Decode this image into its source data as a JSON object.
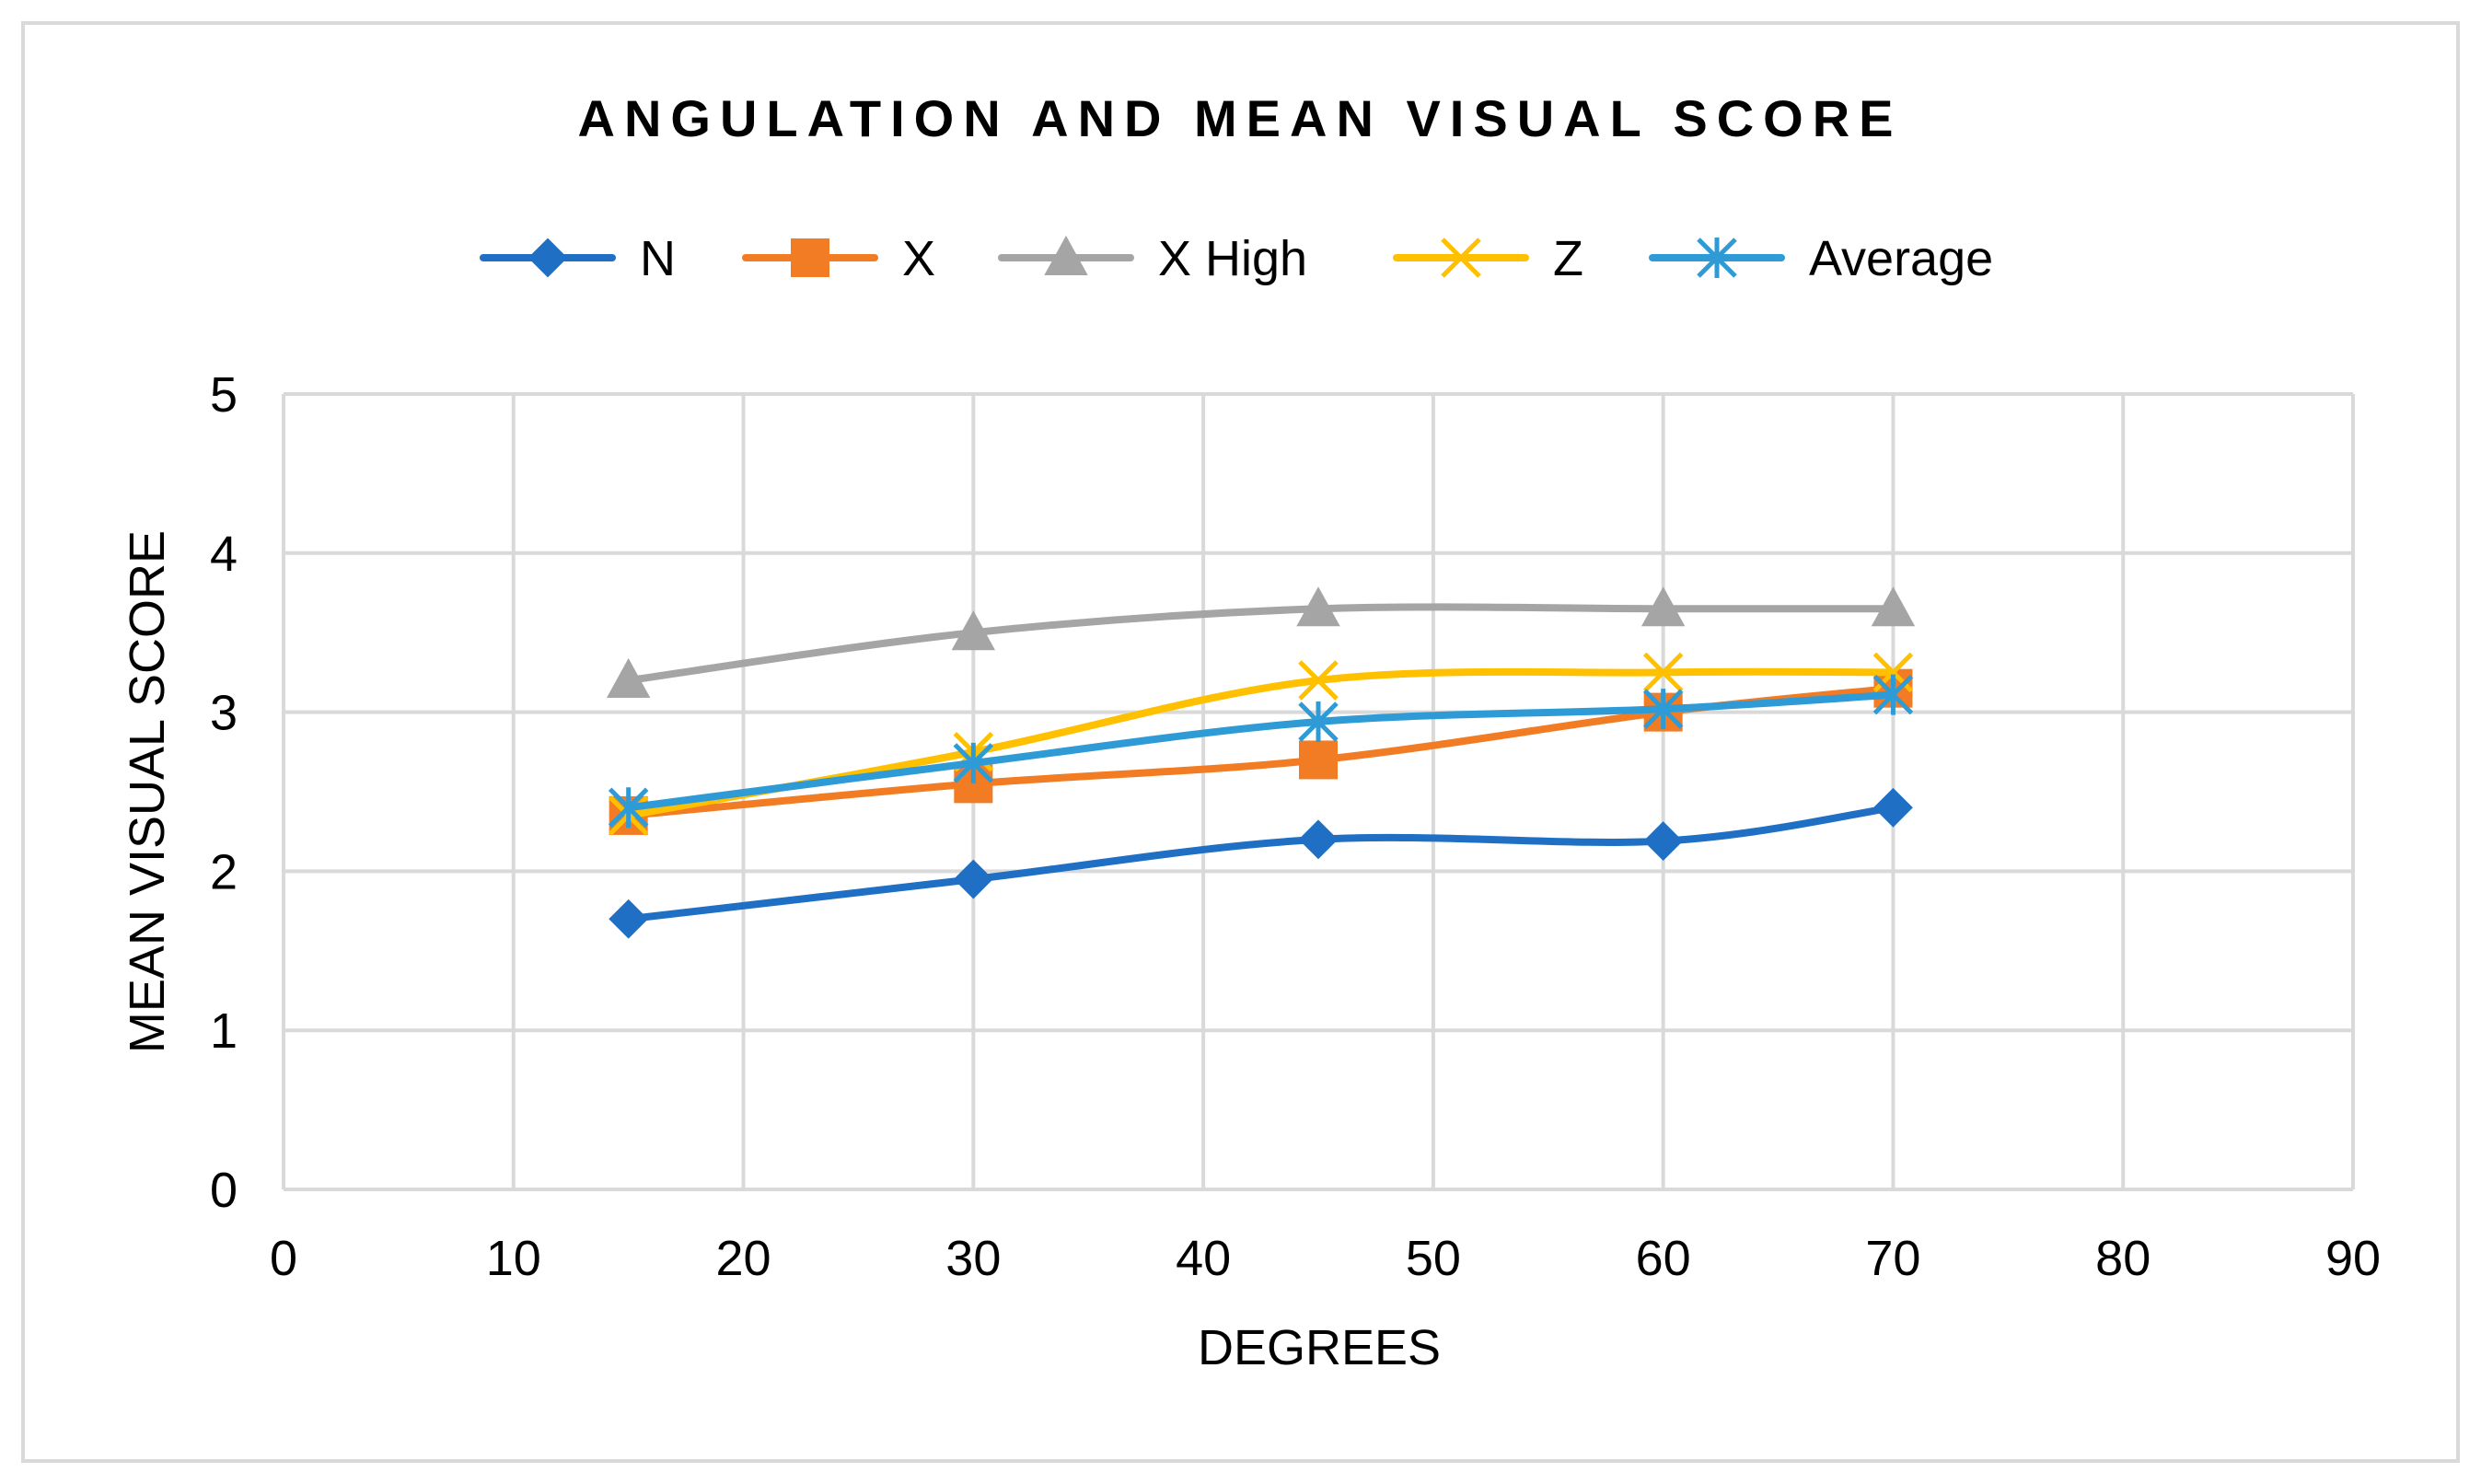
{
  "chart_data": {
    "type": "line",
    "title": "ANGULATION AND MEAN VISUAL SCORE",
    "xlabel": "DEGREES",
    "ylabel": "MEAN VISUAL SCORE",
    "xlim": [
      0,
      90
    ],
    "ylim": [
      0,
      5
    ],
    "x_ticks": [
      "0",
      "10",
      "20",
      "30",
      "40",
      "50",
      "60",
      "70",
      "80",
      "90"
    ],
    "y_ticks": [
      "0",
      "1",
      "2",
      "3",
      "4",
      "5"
    ],
    "x_tick_values": [
      0,
      10,
      20,
      30,
      40,
      50,
      60,
      70,
      80,
      90
    ],
    "y_tick_values": [
      0,
      1,
      2,
      3,
      4,
      5
    ],
    "grid": true,
    "legend_position": "top",
    "x": [
      15,
      30,
      45,
      60,
      70
    ],
    "series": [
      {
        "name": "N",
        "color": "#1F6FC5",
        "marker": "diamond",
        "values": [
          1.7,
          1.95,
          2.2,
          2.19,
          2.4
        ]
      },
      {
        "name": "X",
        "color": "#F27C24",
        "marker": "square",
        "values": [
          2.35,
          2.55,
          2.7,
          3.0,
          3.15
        ]
      },
      {
        "name": "X High",
        "color": "#A5A5A5",
        "marker": "triangle",
        "values": [
          3.2,
          3.5,
          3.65,
          3.65,
          3.65
        ]
      },
      {
        "name": "Z",
        "color": "#FFC000",
        "marker": "x",
        "values": [
          2.35,
          2.75,
          3.2,
          3.25,
          3.25
        ]
      },
      {
        "name": "Average",
        "color": "#2E9BD6",
        "marker": "asterisk",
        "values": [
          2.4,
          2.68,
          2.94,
          3.02,
          3.11
        ]
      }
    ]
  }
}
